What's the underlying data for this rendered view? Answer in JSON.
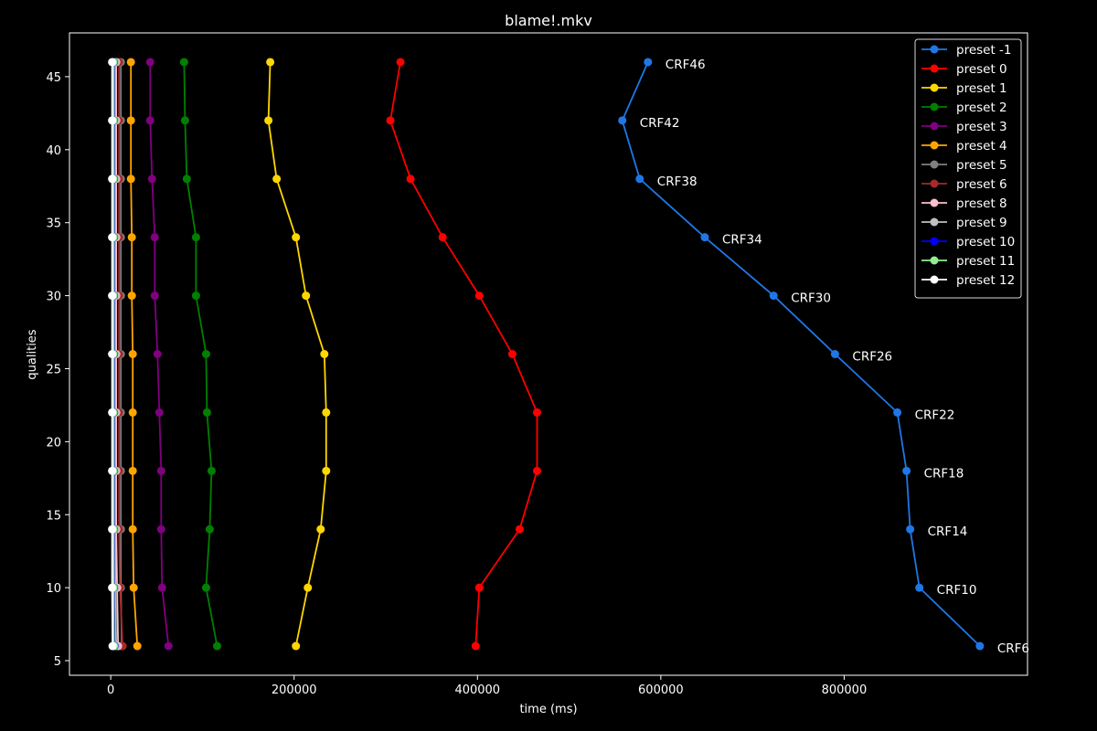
{
  "chart_data": {
    "type": "line",
    "title": "blame!.mkv",
    "xlabel": "time (ms)",
    "ylabel": "qualities",
    "xlim": [
      -45000,
      1000000
    ],
    "ylim": [
      4,
      48
    ],
    "xticks": [
      0,
      200000,
      400000,
      600000,
      800000
    ],
    "xtick_labels": [
      "0",
      "200000",
      "400000",
      "600000",
      "800000"
    ],
    "yticks": [
      5,
      10,
      15,
      20,
      25,
      30,
      35,
      40,
      45
    ],
    "ytick_labels": [
      "5",
      "10",
      "15",
      "20",
      "25",
      "30",
      "35",
      "40",
      "45"
    ],
    "legend_position": "top-right",
    "y": [
      46,
      42,
      38,
      34,
      30,
      26,
      22,
      18,
      14,
      10,
      6
    ],
    "annotations": [
      "CRF46",
      "CRF42",
      "CRF38",
      "CRF34",
      "CRF30",
      "CRF26",
      "CRF22",
      "CRF18",
      "CRF14",
      "CRF10",
      "CRF6"
    ],
    "annotation_series": "preset -1",
    "series": [
      {
        "name": "preset -1",
        "color": "#1f77e6",
        "x": [
          586000,
          558000,
          577000,
          648000,
          723000,
          790000,
          858000,
          868000,
          872000,
          882000,
          948000
        ]
      },
      {
        "name": "preset 0",
        "color": "#ff0000",
        "x": [
          316000,
          305000,
          327000,
          362000,
          402000,
          438000,
          465000,
          465000,
          446000,
          402000,
          398000
        ]
      },
      {
        "name": "preset 1",
        "color": "#ffd700",
        "x": [
          174000,
          172000,
          181000,
          202000,
          213000,
          233000,
          235000,
          235000,
          229000,
          215000,
          202000
        ]
      },
      {
        "name": "preset 2",
        "color": "#008000",
        "x": [
          80000,
          81000,
          83000,
          93000,
          93000,
          104000,
          105000,
          110000,
          108000,
          104000,
          116000
        ]
      },
      {
        "name": "preset 3",
        "color": "#800080",
        "x": [
          43000,
          43000,
          45000,
          48000,
          48000,
          51000,
          53000,
          55000,
          55000,
          56000,
          63000
        ]
      },
      {
        "name": "preset 4",
        "color": "#ffa500",
        "x": [
          22000,
          22000,
          22000,
          23000,
          23000,
          24000,
          24000,
          24000,
          24000,
          25000,
          29000
        ]
      },
      {
        "name": "preset 5",
        "color": "#808080",
        "x": [
          11000,
          11000,
          11000,
          11000,
          11000,
          11000,
          11000,
          11000,
          11000,
          11000,
          12000
        ]
      },
      {
        "name": "preset 6",
        "color": "#a52a2a",
        "x": [
          9000,
          9000,
          9000,
          9000,
          9000,
          9000,
          9000,
          9000,
          9000,
          10000,
          13000
        ]
      },
      {
        "name": "preset 8",
        "color": "#ffc0cb",
        "x": [
          6000,
          6000,
          6000,
          6000,
          6000,
          6000,
          6000,
          6000,
          6000,
          7000,
          8000
        ]
      },
      {
        "name": "preset 9",
        "color": "#c0c0c0",
        "x": [
          5000,
          5000,
          5000,
          5000,
          5000,
          5000,
          5000,
          5000,
          5000,
          5000,
          6000
        ]
      },
      {
        "name": "preset 10",
        "color": "#0000ff",
        "x": [
          3500,
          3500,
          3500,
          3500,
          3500,
          3500,
          3500,
          3500,
          3500,
          3500,
          4000
        ]
      },
      {
        "name": "preset 11",
        "color": "#90ee90",
        "x": [
          3000,
          3000,
          3000,
          3000,
          3000,
          3000,
          3000,
          3000,
          3000,
          3000,
          3500
        ]
      },
      {
        "name": "preset 12",
        "color": "#ffffff",
        "x": [
          1500,
          1500,
          1500,
          1500,
          1500,
          1500,
          1500,
          1500,
          1500,
          1500,
          2000
        ]
      }
    ]
  }
}
